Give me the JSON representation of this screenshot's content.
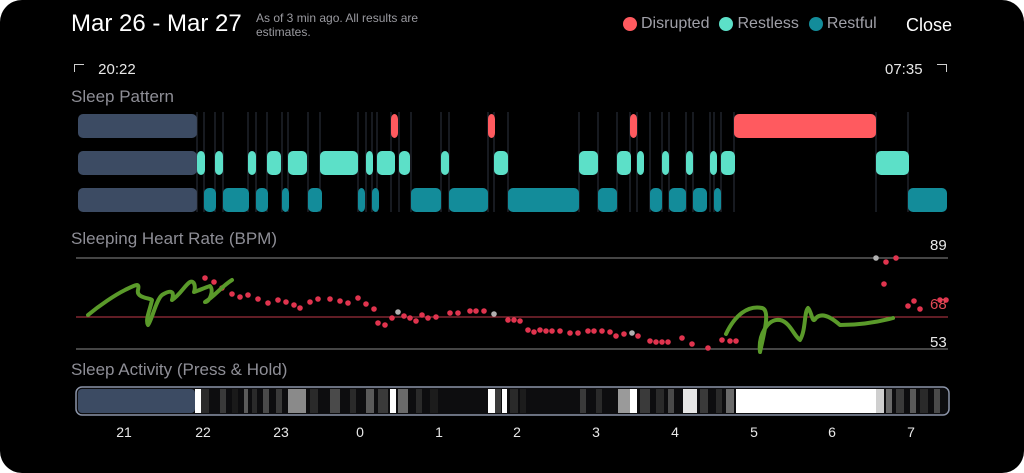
{
  "header": {
    "date_range": "Mar 26 - Mar 27",
    "estimate_note": "As of 3 min ago. All results are estimates.",
    "close_label": "Close"
  },
  "legend": [
    {
      "label": "Disrupted",
      "color": "#ff5a5f"
    },
    {
      "label": "Restless",
      "color": "#5ce0c8"
    },
    {
      "label": "Restful",
      "color": "#138c9a"
    }
  ],
  "timeline": {
    "start": "20:22",
    "end": "07:35"
  },
  "sleep_pattern": {
    "title": "Sleep Pattern"
  },
  "heart_rate": {
    "title": "Sleeping Heart Rate (BPM)",
    "max": "89",
    "avg": "68",
    "min": "53"
  },
  "sleep_activity": {
    "title": "Sleep Activity (Press & Hold)"
  },
  "hour_ticks": [
    "21",
    "22",
    "23",
    "0",
    "1",
    "2",
    "3",
    "4",
    "5",
    "6",
    "7"
  ],
  "colors": {
    "disrupted": "#ff5a5f",
    "restless": "#5ce0c8",
    "restful": "#138c9a",
    "awake_band": "#3c4b63",
    "hr_dot": "#e0344e",
    "annotation": "#5a9a2a"
  }
}
